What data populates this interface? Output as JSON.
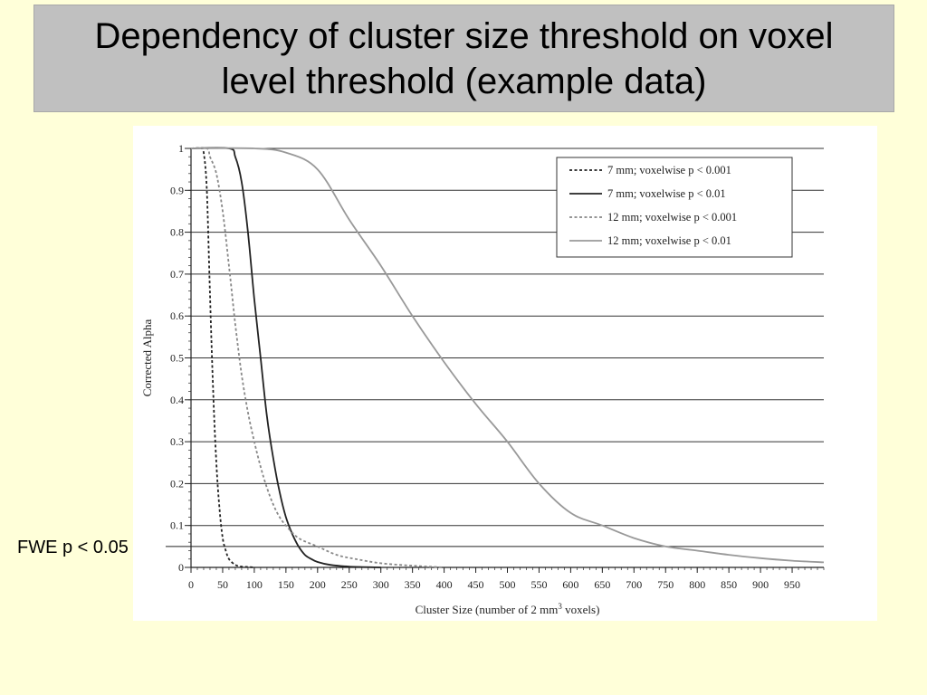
{
  "slide": {
    "title_line1": "Dependency of cluster size threshold on voxel",
    "title_line2": "level threshold (example data)",
    "annotation": "FWE p < 0.05"
  },
  "chart_data": {
    "type": "line",
    "title": "",
    "xlabel": "Cluster Size (number of 2 mm",
    "xlabel_sup": "3",
    "xlabel_suffix": " voxels)",
    "ylabel": "Corrected Alpha",
    "xlim": [
      0,
      1000
    ],
    "ylim": [
      0,
      1
    ],
    "x_ticks": [
      "0",
      "50",
      "100",
      "150",
      "200",
      "250",
      "300",
      "350",
      "400",
      "450",
      "500",
      "550",
      "600",
      "650",
      "700",
      "750",
      "800",
      "850",
      "900",
      "950"
    ],
    "y_ticks": [
      "0",
      "0.1",
      "0.2",
      "0.3",
      "0.4",
      "0.5",
      "0.6",
      "0.7",
      "0.8",
      "0.9",
      "1"
    ],
    "grid": "horizontal",
    "legend_position": "top-right",
    "reference_line": {
      "label": "FWE p < 0.05",
      "y": 0.05
    },
    "series": [
      {
        "name": "7 mm; voxelwise p < 0.001",
        "style": "dashed",
        "color": "#222222",
        "x": [
          0,
          15,
          20,
          25,
          30,
          35,
          40,
          45,
          50,
          55,
          60,
          70,
          80,
          90,
          100
        ],
        "y": [
          1,
          1,
          0.99,
          0.9,
          0.65,
          0.42,
          0.25,
          0.14,
          0.07,
          0.04,
          0.02,
          0.006,
          0.002,
          0.001,
          0
        ]
      },
      {
        "name": "7 mm; voxelwise p < 0.01",
        "style": "solid",
        "color": "#222222",
        "x": [
          0,
          60,
          70,
          80,
          90,
          100,
          110,
          120,
          130,
          140,
          150,
          160,
          170,
          180,
          190,
          200,
          220,
          250,
          300
        ],
        "y": [
          1,
          1,
          0.98,
          0.92,
          0.8,
          0.64,
          0.5,
          0.36,
          0.26,
          0.18,
          0.12,
          0.08,
          0.05,
          0.03,
          0.02,
          0.013,
          0.006,
          0.002,
          0
        ]
      },
      {
        "name": "12 mm; voxelwise p < 0.001",
        "style": "dashed",
        "color": "#888888",
        "x": [
          0,
          25,
          30,
          40,
          50,
          60,
          70,
          80,
          90,
          100,
          110,
          120,
          130,
          140,
          150,
          170,
          200,
          230,
          260,
          300,
          350,
          400
        ],
        "y": [
          1,
          1,
          0.98,
          0.94,
          0.85,
          0.72,
          0.58,
          0.46,
          0.37,
          0.3,
          0.24,
          0.19,
          0.15,
          0.12,
          0.1,
          0.07,
          0.05,
          0.03,
          0.02,
          0.01,
          0.004,
          0
        ]
      },
      {
        "name": "12 mm; voxelwise p < 0.01",
        "style": "solid",
        "color": "#999999",
        "x": [
          0,
          100,
          150,
          200,
          250,
          300,
          350,
          400,
          450,
          500,
          550,
          600,
          650,
          700,
          750,
          800,
          850,
          900,
          950,
          1000
        ],
        "y": [
          1,
          1,
          0.99,
          0.95,
          0.83,
          0.72,
          0.6,
          0.49,
          0.39,
          0.3,
          0.2,
          0.13,
          0.1,
          0.07,
          0.05,
          0.04,
          0.03,
          0.022,
          0.016,
          0.012
        ]
      }
    ]
  }
}
